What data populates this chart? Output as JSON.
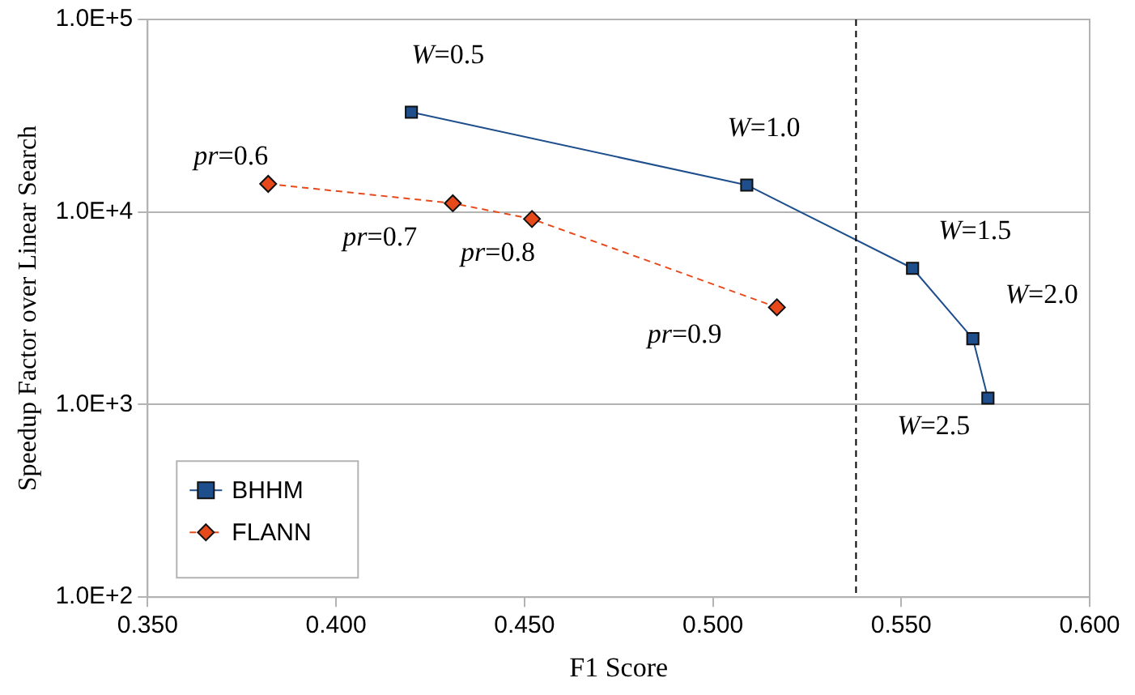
{
  "chart_data": {
    "type": "line",
    "xlabel": "F1 Score",
    "ylabel": "Speedup Factor over Linear Search",
    "log": "y",
    "grid": "y",
    "legend": "bottom left",
    "xlim": [
      0.35,
      0.6
    ],
    "xticks": [
      {
        "value": 0.35,
        "label": "0.350"
      },
      {
        "value": 0.4,
        "label": "0.400"
      },
      {
        "value": 0.45,
        "label": "0.450"
      },
      {
        "value": 0.5,
        "label": "0.500"
      },
      {
        "value": 0.55,
        "label": "0.550"
      },
      {
        "value": 0.6,
        "label": "0.600"
      }
    ],
    "ylim": [
      100,
      100000
    ],
    "yticks": [
      {
        "value": 100,
        "label": "1.0E+2"
      },
      {
        "value": 1000,
        "label": "1.0E+3"
      },
      {
        "value": 10000,
        "label": "1.0E+4"
      },
      {
        "value": 100000,
        "label": "1.0E+5"
      }
    ],
    "series": [
      {
        "name": "BHHM",
        "color": "#1f4e8c",
        "marker": "square",
        "line_style": "solid",
        "x": [
          0.42,
          0.509,
          0.553,
          0.569,
          0.573
        ],
        "values": [
          33000,
          13800,
          5100,
          2200,
          1080
        ]
      },
      {
        "name": "FLANN",
        "color": "#e8491b",
        "marker": "diamond",
        "line_style": "dashed",
        "x": [
          0.382,
          0.431,
          0.452,
          0.517
        ],
        "values": [
          14000,
          11100,
          9200,
          3200
        ]
      }
    ],
    "ref_lines": [
      {
        "axis": "x",
        "value": 0.538,
        "color": "#000000",
        "line_style": "dashed"
      }
    ],
    "annotations": [
      {
        "text": "W=0.5",
        "x": 0.42,
        "y": 33000
      },
      {
        "text": "W=1.0",
        "x": 0.509,
        "y": 13800
      },
      {
        "text": "W=1.5",
        "x": 0.553,
        "y": 5100
      },
      {
        "text": "W=2.0",
        "x": 0.569,
        "y": 2200
      },
      {
        "text": "W=2.5",
        "x": 0.573,
        "y": 1080
      },
      {
        "text": "pr=0.6",
        "x": 0.382,
        "y": 14000
      },
      {
        "text": "pr=0.7",
        "x": 0.431,
        "y": 11100
      },
      {
        "text": "pr=0.8",
        "x": 0.452,
        "y": 9200
      },
      {
        "text": "pr=0.9",
        "x": 0.517,
        "y": 3200
      }
    ]
  }
}
